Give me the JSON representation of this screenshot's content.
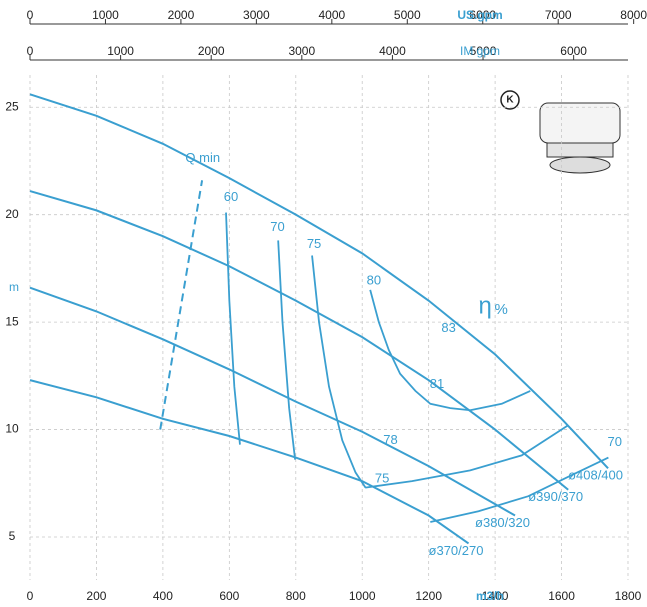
{
  "chart_data": {
    "type": "line",
    "x_label": "m3/h",
    "y_label": "m",
    "xlim": [
      0,
      1800
    ],
    "xticks": [
      0,
      200,
      400,
      600,
      800,
      1000,
      1200,
      1400,
      1600,
      1800
    ],
    "ylim": [
      3,
      26.5
    ],
    "yticks": [
      5,
      10,
      15,
      20,
      25
    ],
    "grid": true,
    "color": "#3a9fd0",
    "series": [
      {
        "name": "ø408/400",
        "x": [
          0,
          200,
          400,
          600,
          800,
          1000,
          1200,
          1400,
          1600,
          1740
        ],
        "values": [
          25.6,
          24.6,
          23.3,
          21.7,
          20.0,
          18.2,
          16.0,
          13.5,
          10.5,
          8.2
        ]
      },
      {
        "name": "ø390/370",
        "x": [
          0,
          200,
          400,
          600,
          800,
          1000,
          1200,
          1400,
          1620
        ],
        "values": [
          21.1,
          20.2,
          19.0,
          17.6,
          16.0,
          14.3,
          12.3,
          10.0,
          7.2
        ]
      },
      {
        "name": "ø380/320",
        "x": [
          0,
          200,
          400,
          600,
          800,
          1000,
          1200,
          1460
        ],
        "values": [
          16.6,
          15.5,
          14.2,
          12.8,
          11.3,
          9.9,
          8.3,
          6.0
        ]
      },
      {
        "name": "ø370/270",
        "x": [
          0,
          200,
          400,
          600,
          800,
          1000,
          1200,
          1320
        ],
        "values": [
          12.3,
          11.5,
          10.5,
          9.7,
          8.7,
          7.6,
          6.0,
          4.7
        ]
      }
    ],
    "efficiency_lines": [
      {
        "x": [
          590,
          600,
          615,
          632
        ],
        "values": [
          20.1,
          16,
          12,
          9.3
        ]
      },
      {
        "x": [
          747,
          760,
          780,
          798
        ],
        "values": [
          18.8,
          15,
          11,
          8.6
        ]
      },
      {
        "x": [
          849,
          870,
          900,
          940,
          980,
          1010
        ],
        "values": [
          18.1,
          15,
          12,
          9.5,
          8,
          7.3
        ]
      },
      {
        "x": [
          1024,
          1050,
          1080,
          1114,
          1160,
          1205,
          1265,
          1325,
          1420,
          1506
        ],
        "values": [
          16.5,
          15,
          13.7,
          12.6,
          11.8,
          11.2,
          11.0,
          10.9,
          11.2,
          11.8
        ]
      },
      {
        "x": [
          1009,
          1150,
          1325,
          1480,
          1620
        ],
        "values": [
          7.3,
          7.6,
          8.1,
          8.8,
          10.2
        ]
      },
      {
        "x": [
          1205,
          1350,
          1500,
          1620,
          1741
        ],
        "values": [
          5.7,
          6.2,
          6.9,
          7.8,
          8.7
        ]
      }
    ],
    "qmin": {
      "label": "Q min",
      "x": [
        392,
        518
      ],
      "values": [
        10.0,
        21.6
      ]
    },
    "annotations": [
      {
        "text": "Q min",
        "x": 520,
        "y": 22.6
      },
      {
        "text": "60",
        "x": 605,
        "y": 20.8
      },
      {
        "text": "70",
        "x": 745,
        "y": 19.4
      },
      {
        "text": "75",
        "x": 855,
        "y": 18.6
      },
      {
        "text": "80",
        "x": 1035,
        "y": 16.9
      },
      {
        "text": "83",
        "x": 1260,
        "y": 14.7
      },
      {
        "text": "81",
        "x": 1225,
        "y": 12.1
      },
      {
        "text": "78",
        "x": 1085,
        "y": 9.5
      },
      {
        "text": "75",
        "x": 1060,
        "y": 7.7
      },
      {
        "text": "70",
        "x": 1760,
        "y": 9.4
      }
    ],
    "efficiency_symbol": "η",
    "efficiency_unit": "%",
    "efficiency_symbol_at": {
      "x": 1350,
      "y": 15.7
    },
    "logo_text": "K",
    "top_axes": [
      {
        "label": "US.gpm",
        "xlim": [
          0,
          7925
        ],
        "ticks": [
          0,
          1000,
          2000,
          3000,
          4000,
          5000,
          6000,
          7000,
          8000
        ]
      },
      {
        "label": "IM gpm",
        "xlim": [
          0,
          6600
        ],
        "ticks": [
          0,
          1000,
          2000,
          3000,
          4000,
          5000,
          6000
        ]
      }
    ]
  }
}
